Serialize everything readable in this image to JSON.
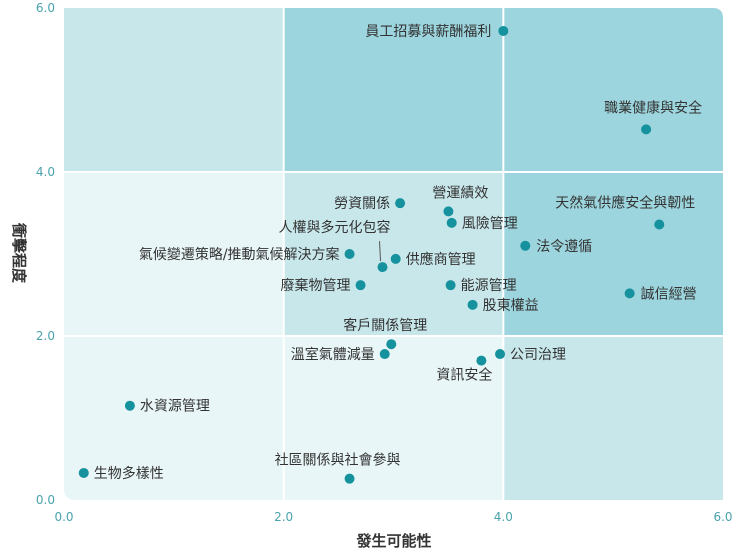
{
  "chart_data": {
    "type": "scatter",
    "xlabel": "發生可能性",
    "ylabel": "衝擊程度",
    "xlim": [
      0,
      6
    ],
    "ylim": [
      0,
      6
    ],
    "x_ticks": [
      "0.0",
      "2.0",
      "4.0",
      "6.0"
    ],
    "y_ticks": [
      "0.0",
      "2.0",
      "4.0",
      "6.0"
    ],
    "grid": true,
    "colors": {
      "point": "#15929e",
      "zone_low": "#e9f6f7",
      "zone_mid": "#c8e7eb",
      "zone_high": "#9cd5dd",
      "grid": "#ffffff",
      "tick": "#4aa3ad",
      "label": "#333333"
    },
    "points": [
      {
        "label": "員工招募與薪酬福利",
        "x": 4.0,
        "y": 5.72
      },
      {
        "label": "職業健康與安全",
        "x": 5.3,
        "y": 4.52
      },
      {
        "label": "勞資關係",
        "x": 3.06,
        "y": 3.62
      },
      {
        "label": "營運績效",
        "x": 3.5,
        "y": 3.52
      },
      {
        "label": "風險管理",
        "x": 3.53,
        "y": 3.38
      },
      {
        "label": "天然氣供應安全與韌性",
        "x": 5.42,
        "y": 3.36
      },
      {
        "label": "人權與多元化包容",
        "x": 2.9,
        "y": 2.84
      },
      {
        "label": "氣候變遷策略/推動氣候解決方案",
        "x": 2.6,
        "y": 3.0
      },
      {
        "label": "法令遵循",
        "x": 4.2,
        "y": 3.1
      },
      {
        "label": "供應商管理",
        "x": 3.02,
        "y": 2.94
      },
      {
        "label": "廢棄物管理",
        "x": 2.7,
        "y": 2.62
      },
      {
        "label": "能源管理",
        "x": 3.52,
        "y": 2.62
      },
      {
        "label": "誠信經營",
        "x": 5.15,
        "y": 2.52
      },
      {
        "label": "股東權益",
        "x": 3.72,
        "y": 2.38
      },
      {
        "label": "客戶關係管理",
        "x": 2.98,
        "y": 1.9
      },
      {
        "label": "溫室氣體減量",
        "x": 2.92,
        "y": 1.78
      },
      {
        "label": "公司治理",
        "x": 3.97,
        "y": 1.78
      },
      {
        "label": "資訊安全",
        "x": 3.8,
        "y": 1.7
      },
      {
        "label": "水資源管理",
        "x": 0.6,
        "y": 1.15
      },
      {
        "label": "生物多樣性",
        "x": 0.18,
        "y": 0.33
      },
      {
        "label": "社區關係與社會參與",
        "x": 2.6,
        "y": 0.26
      }
    ]
  }
}
